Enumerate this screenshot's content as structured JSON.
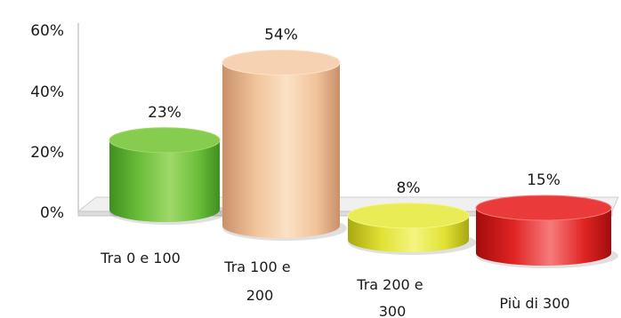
{
  "chart_data": {
    "type": "bar",
    "style": "3d-cylinder",
    "categories": [
      "Tra 0 e 100",
      "Tra 100 e 200",
      "Tra 200 e 300",
      "Più di 300"
    ],
    "category_lines": [
      [
        "Tra 0 e 100"
      ],
      [
        "Tra 100 e",
        "200"
      ],
      [
        "Tra 200 e",
        "300"
      ],
      [
        "Più di 300"
      ]
    ],
    "values": [
      23,
      54,
      8,
      15
    ],
    "data_labels": [
      "23%",
      "54%",
      "8%",
      "15%"
    ],
    "ylim": [
      0,
      60
    ],
    "yticks": [
      0,
      20,
      40,
      60
    ],
    "ytick_labels": [
      "0%",
      "20%",
      "40%",
      "60%"
    ],
    "title": "",
    "xlabel": "",
    "ylabel": "",
    "legend": "none",
    "grid": false,
    "colors": [
      {
        "light": "#9fd86a",
        "mid": "#6cbf3a",
        "dark": "#3f8f20",
        "top": "#86cc4f"
      },
      {
        "light": "#fbe1c6",
        "mid": "#f1c39a",
        "dark": "#c9906a",
        "top": "#f6d2b2"
      },
      {
        "light": "#f4f580",
        "mid": "#e0e234",
        "dark": "#a8a812",
        "top": "#eaec55"
      },
      {
        "light": "#f77b7b",
        "mid": "#e02424",
        "dark": "#a30c0c",
        "top": "#ea3a3a"
      }
    ]
  }
}
